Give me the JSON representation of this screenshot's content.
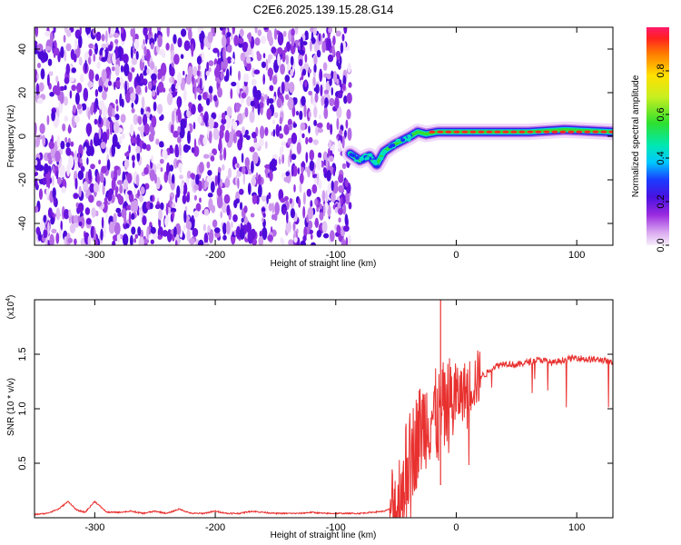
{
  "title": "C2E6.2025.139.15.28.G14",
  "chart_data": [
    {
      "type": "heatmap",
      "xlabel": "Height of straight line (km)",
      "ylabel": "Frequency (Hz)",
      "xlim": [
        -350,
        130
      ],
      "ylim": [
        -50,
        50
      ],
      "xticks": [
        -300,
        -200,
        -100,
        0,
        100
      ],
      "yticks": [
        40,
        20,
        0,
        -20,
        -40
      ],
      "noise_region_x": [
        -350,
        -88
      ],
      "ridge": [
        {
          "x": -88,
          "y": -8
        },
        {
          "x": -80,
          "y": -11
        },
        {
          "x": -72,
          "y": -9
        },
        {
          "x": -66,
          "y": -13
        },
        {
          "x": -60,
          "y": -7
        },
        {
          "x": -52,
          "y": -4
        },
        {
          "x": -45,
          "y": -2
        },
        {
          "x": -38,
          "y": 0
        },
        {
          "x": -32,
          "y": 2
        },
        {
          "x": -25,
          "y": 1
        },
        {
          "x": -15,
          "y": 2
        },
        {
          "x": 0,
          "y": 2
        },
        {
          "x": 30,
          "y": 2
        },
        {
          "x": 60,
          "y": 2
        },
        {
          "x": 90,
          "y": 3
        },
        {
          "x": 130,
          "y": 2
        }
      ],
      "colorbar": {
        "label": "Normalized spectral amplitude",
        "range": [
          0.0,
          1.0
        ],
        "ticks": [
          0.0,
          0.2,
          0.4,
          0.6,
          0.8
        ]
      }
    },
    {
      "type": "line",
      "xlabel": "Height of straight line (km)",
      "ylabel": "SNR (10 * v/v)",
      "scale_label": "(x10",
      "scale_exp": "4",
      "scale_close": ")",
      "xlim": [
        -350,
        130
      ],
      "ylim": [
        0,
        2.0
      ],
      "xticks": [
        -300,
        -200,
        -100,
        0,
        100
      ],
      "yticks": [
        0.5,
        1.0,
        1.5
      ],
      "ytick_labels": [
        "0.5",
        "1.0",
        "1.5"
      ],
      "color": "#e8312f",
      "series": [
        {
          "x": [
            -350,
            -340,
            -330,
            -322,
            -315,
            -308,
            -300,
            -290,
            -280,
            -270,
            -260,
            -250,
            -240,
            -230,
            -220,
            -210,
            -200,
            -190,
            -180,
            -170,
            -160,
            -150,
            -140,
            -130,
            -120,
            -110,
            -100,
            -90,
            -80,
            -70,
            -60,
            -50,
            -45,
            -40,
            -35,
            -30,
            -25,
            -20,
            -15,
            -10,
            -5,
            0,
            5,
            10,
            15,
            20,
            25,
            30,
            40,
            50,
            60,
            70,
            80,
            90,
            100,
            110,
            120,
            130
          ],
          "y": [
            0.03,
            0.04,
            0.08,
            0.15,
            0.07,
            0.05,
            0.15,
            0.05,
            0.05,
            0.06,
            0.04,
            0.06,
            0.04,
            0.08,
            0.04,
            0.04,
            0.06,
            0.04,
            0.04,
            0.06,
            0.05,
            0.04,
            0.04,
            0.04,
            0.05,
            0.04,
            0.04,
            0.04,
            0.04,
            0.05,
            0.06,
            0.1,
            0.3,
            0.5,
            0.65,
            0.8,
            0.9,
            0.95,
            0.9,
            1.0,
            1.05,
            1.1,
            1.15,
            1.2,
            1.25,
            1.3,
            1.32,
            1.38,
            1.42,
            1.4,
            1.43,
            1.45,
            1.42,
            1.45,
            1.47,
            1.45,
            1.45,
            1.42
          ]
        }
      ],
      "spike": {
        "x": -13,
        "y": 2.0
      }
    }
  ]
}
